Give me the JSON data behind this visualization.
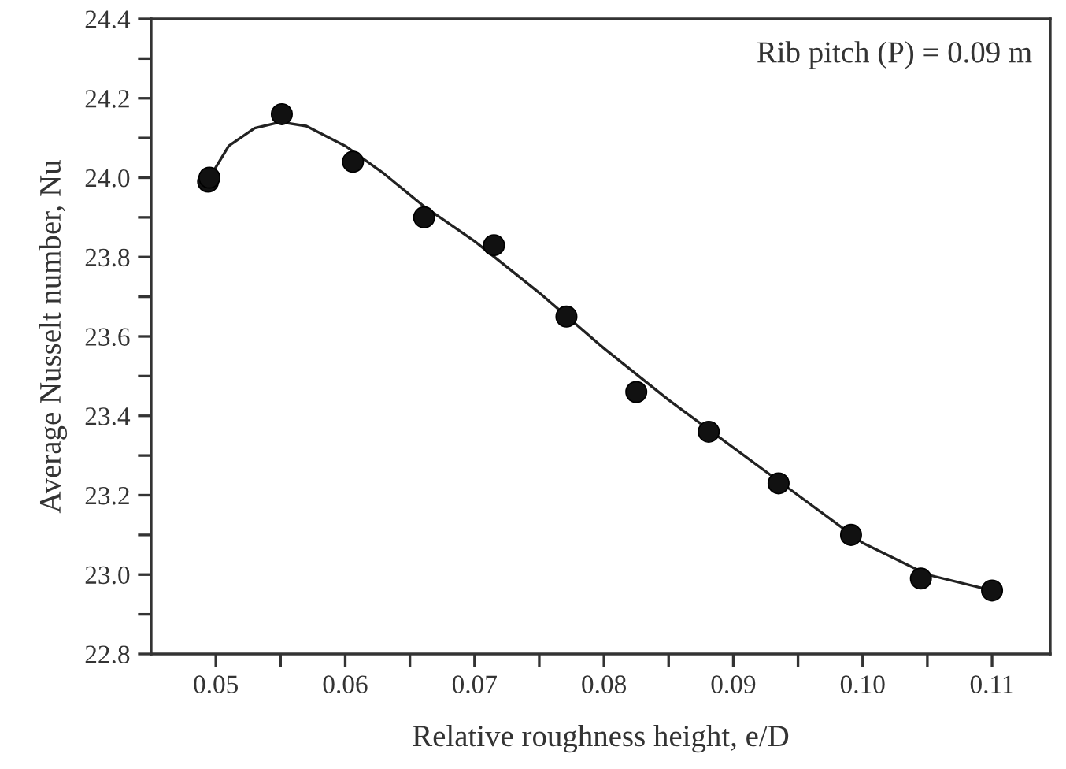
{
  "chart_data": {
    "type": "scatter",
    "xlabel": "Relative roughness height, e/D",
    "ylabel": "Average Nusselt number, Nu",
    "annotations": [
      "Rib pitch (P) = 0.09 m"
    ],
    "series": [
      {
        "color": "#111111",
        "marker": "circle",
        "x": [
          0.0494,
          0.0495,
          0.0551,
          0.0606,
          0.0661,
          0.0715,
          0.0771,
          0.0825,
          0.0881,
          0.0935,
          0.0991,
          0.1045,
          0.11
        ],
        "values": [
          23.99,
          24.0,
          24.16,
          24.04,
          23.9,
          23.83,
          23.65,
          23.46,
          23.36,
          23.23,
          23.1,
          22.99,
          22.96
        ]
      },
      {
        "type": "line",
        "color": "#222222",
        "line_style": "solid",
        "x": [
          0.0497,
          0.051,
          0.053,
          0.055,
          0.057,
          0.06,
          0.063,
          0.066,
          0.07,
          0.075,
          0.08,
          0.085,
          0.09,
          0.095,
          0.1,
          0.105,
          0.11
        ],
        "values": [
          24.01,
          24.08,
          24.125,
          24.14,
          24.13,
          24.08,
          24.01,
          23.93,
          23.84,
          23.71,
          23.57,
          23.44,
          23.32,
          23.2,
          23.08,
          23.0,
          22.96
        ]
      }
    ],
    "xlim": [
      0.045,
      0.1145
    ],
    "ylim": [
      22.8,
      24.4
    ],
    "xticks": [
      0.05,
      {
        "value": 0.055,
        "label": null
      },
      0.06,
      {
        "value": 0.065,
        "label": null
      },
      0.07,
      {
        "value": 0.075,
        "label": null
      },
      0.08,
      {
        "value": 0.085,
        "label": null
      },
      0.09,
      {
        "value": 0.095,
        "label": null
      },
      {
        "value": 0.1,
        "label": "0.10"
      },
      {
        "value": 0.105,
        "label": null
      },
      0.11
    ],
    "yticks": [
      22.8,
      {
        "value": 22.9,
        "label": null
      },
      {
        "value": 23.0,
        "label": "23.0"
      },
      {
        "value": 23.1,
        "label": null
      },
      23.2,
      {
        "value": 23.3,
        "label": null
      },
      23.4,
      {
        "value": 23.5,
        "label": null
      },
      23.6,
      {
        "value": 23.7,
        "label": null
      },
      23.8,
      {
        "value": 23.9,
        "label": null
      },
      {
        "value": 24.0,
        "label": "24.0"
      },
      {
        "value": 24.1,
        "label": null
      },
      24.2,
      {
        "value": 24.3,
        "label": null
      },
      24.4
    ],
    "grid": false,
    "legend": false
  }
}
